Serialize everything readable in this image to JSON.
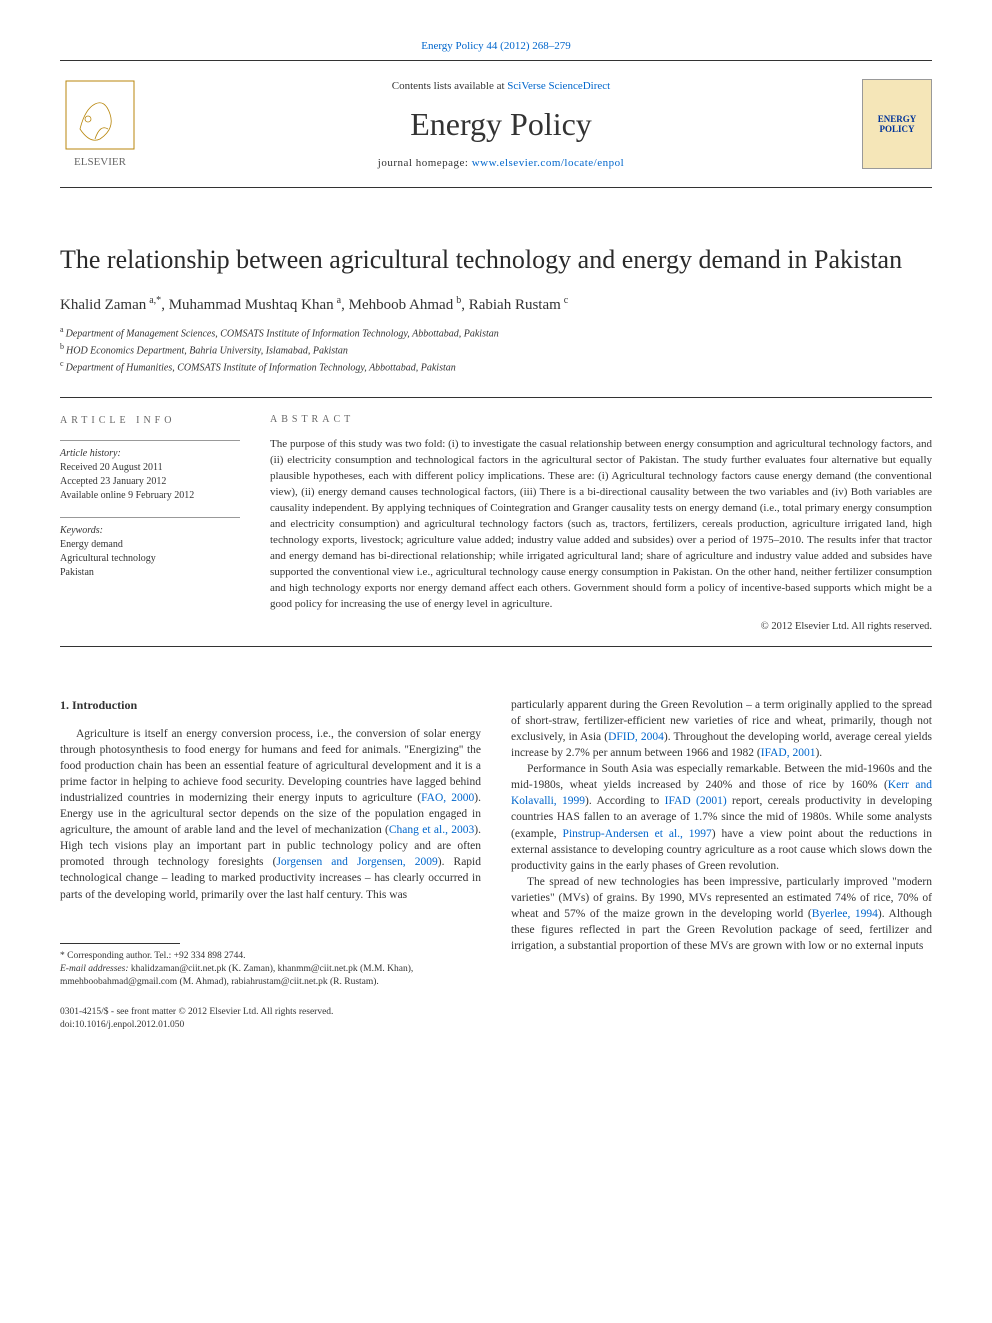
{
  "journal_ref": "Energy Policy 44 (2012) 268–279",
  "header": {
    "contents_prefix": "Contents lists available at ",
    "contents_link": "SciVerse ScienceDirect",
    "journal_name": "Energy Policy",
    "homepage_prefix": "journal homepage: ",
    "homepage_url": "www.elsevier.com/locate/enpol",
    "publisher_name": "ELSEVIER",
    "cover_text": "ENERGY POLICY"
  },
  "title": "The relationship between agricultural technology and energy demand in Pakistan",
  "authors_line": "Khalid Zaman",
  "authors": [
    {
      "name": "Khalid Zaman",
      "sup": "a,*"
    },
    {
      "name": "Muhammad Mushtaq Khan",
      "sup": "a"
    },
    {
      "name": "Mehboob Ahmad",
      "sup": "b"
    },
    {
      "name": "Rabiah Rustam",
      "sup": "c"
    }
  ],
  "affiliations": [
    {
      "sup": "a",
      "text": "Department of Management Sciences, COMSATS Institute of Information Technology, Abbottabad, Pakistan"
    },
    {
      "sup": "b",
      "text": "HOD Economics Department, Bahria University, Islamabad, Pakistan"
    },
    {
      "sup": "c",
      "text": "Department of Humanities, COMSATS Institute of Information Technology, Abbottabad, Pakistan"
    }
  ],
  "article_info": {
    "label": "ARTICLE INFO",
    "history_label": "Article history:",
    "received": "Received 20 August 2011",
    "accepted": "Accepted 23 January 2012",
    "online": "Available online 9 February 2012",
    "keywords_label": "Keywords:",
    "keywords": [
      "Energy demand",
      "Agricultural technology",
      "Pakistan"
    ]
  },
  "abstract": {
    "label": "ABSTRACT",
    "text": "The purpose of this study was two fold: (i) to investigate the casual relationship between energy consumption and agricultural technology factors, and (ii) electricity consumption and technological factors in the agricultural sector of Pakistan. The study further evaluates four alternative but equally plausible hypotheses, each with different policy implications. These are: (i) Agricultural technology factors cause energy demand (the conventional view), (ii) energy demand causes technological factors, (iii) There is a bi-directional causality between the two variables and (iv) Both variables are causality independent. By applying techniques of Cointegration and Granger causality tests on energy demand (i.e., total primary energy consumption and electricity consumption) and agricultural technology factors (such as, tractors, fertilizers, cereals production, agriculture irrigated land, high technology exports, livestock; agriculture value added; industry value added and subsides) over a period of 1975–2010. The results infer that tractor and energy demand has bi-directional relationship; while irrigated agricultural land; share of agriculture and industry value added and subsides have supported the conventional view i.e., agricultural technology cause energy consumption in Pakistan. On the other hand, neither fertilizer consumption and high technology exports nor energy demand affect each others. Government should form a policy of incentive-based supports which might be a good policy for increasing the use of energy level in agriculture.",
    "copyright": "© 2012 Elsevier Ltd. All rights reserved."
  },
  "body": {
    "heading": "1. Introduction",
    "col1_p1_pre": "Agriculture is itself an energy conversion process, i.e., the conversion of solar energy through photosynthesis to food energy for humans and feed for animals. ''Energizing'' the food production chain has been an essential feature of agricultural development and it is a prime factor in helping to achieve food security. Developing countries have lagged behind industrialized countries in modernizing their energy inputs to agriculture (",
    "ref_fao": "FAO, 2000",
    "col1_p1_mid1": "). Energy use in the agricultural sector depends on the size of the population engaged in agriculture, the amount of arable land and the level of mechanization (",
    "ref_chang": "Chang et al., 2003",
    "col1_p1_mid2": "). High tech visions play an important part in public technology policy and are often promoted through technology foresights (",
    "ref_jorgensen": "Jorgensen and Jorgensen, 2009",
    "col1_p1_end": "). Rapid technological change – leading to marked productivity increases – has clearly occurred in parts of the developing world, primarily over the last half century. This was",
    "col2_p1_pre": "particularly apparent during the Green Revolution – a term originally applied to the spread of short-straw, fertilizer-efficient new varieties of rice and wheat, primarily, though not exclusively, in Asia (",
    "ref_dfid": "DFID, 2004",
    "col2_p1_mid": "). Throughout the developing world, average cereal yields increase by 2.7% per annum between 1966 and 1982 (",
    "ref_ifad1": "IFAD, 2001",
    "col2_p1_end": ").",
    "col2_p2_pre": "Performance in South Asia was especially remarkable. Between the mid-1960s and the mid-1980s, wheat yields increased by 240% and those of rice by 160% (",
    "ref_kerr": "Kerr and Kolavalli, 1999",
    "col2_p2_mid1": "). According to ",
    "ref_ifad2": "IFAD (2001)",
    "col2_p2_mid2": " report, cereals productivity in developing countries HAS fallen to an average of 1.7% since the mid of 1980s. While some analysts (example, ",
    "ref_pinstrup": "Pinstrup-Andersen et al., 1997",
    "col2_p2_end": ") have a view point about the reductions in external assistance to developing country agriculture as a root cause which slows down the productivity gains in the early phases of Green revolution.",
    "col2_p3_pre": "The spread of new technologies has been impressive, particularly improved \"modern varieties\" (MVs) of grains. By 1990, MVs represented an estimated 74% of rice, 70% of wheat and 57% of the maize grown in the developing world (",
    "ref_byerlee": "Byerlee, 1994",
    "col2_p3_end": "). Although these figures reflected in part the Green Revolution package of seed, fertilizer and irrigation, a substantial proportion of these MVs are grown with low or no external inputs"
  },
  "footnotes": {
    "corresponding": "* Corresponding author. Tel.: +92 334 898 2744.",
    "email_label": "E-mail addresses:",
    "emails": " khalidzaman@ciit.net.pk (K. Zaman),\nkhanmm@ciit.net.pk (M.M. Khan), mmehboobahmad@gmail.com (M. Ahmad),\nrabiahrustam@ciit.net.pk (R. Rustam)."
  },
  "bottom": {
    "line1": "0301-4215/$ - see front matter © 2012 Elsevier Ltd. All rights reserved.",
    "line2": "doi:10.1016/j.enpol.2012.01.050"
  },
  "colors": {
    "link": "#0066cc",
    "text": "#333333",
    "rule": "#333333",
    "cover_bg": "#f5e6b8",
    "cover_text": "#003399"
  },
  "typography": {
    "body_fontsize_pt": 11.5,
    "title_fontsize_pt": 26,
    "journal_name_fontsize_pt": 32,
    "abstract_fontsize_pt": 11,
    "footnote_fontsize_pt": 9.5
  }
}
